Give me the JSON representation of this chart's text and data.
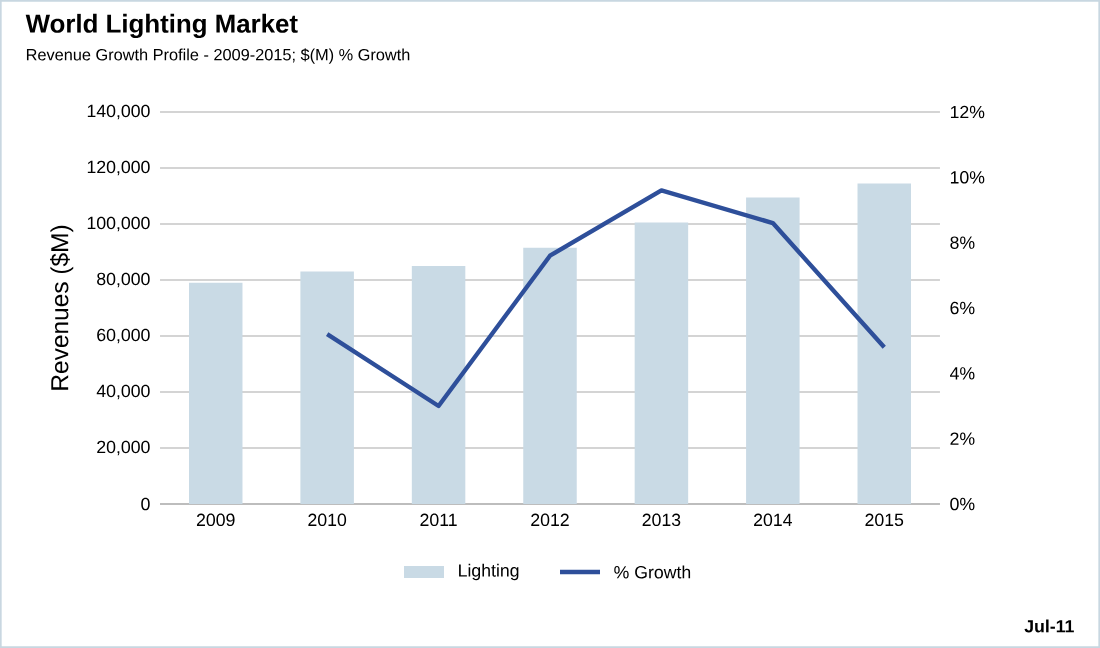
{
  "chart_data": {
    "type": "bar",
    "title": "World Lighting Market",
    "subtitle": "Revenue Growth Profile - 2009-2015;  $(M) % Growth",
    "ylabel": "Revenues ($M)",
    "categories": [
      "2009",
      "2010",
      "2011",
      "2012",
      "2013",
      "2014",
      "2015"
    ],
    "series": [
      {
        "name": "Lighting",
        "color": "#c9dae5",
        "values": [
          79000,
          83000,
          85000,
          91500,
          100500,
          109500,
          114500
        ]
      },
      {
        "name": "% Growth",
        "type": "line",
        "axis": "y2",
        "color": "#2e4f9a",
        "values": [
          null,
          5.2,
          3.0,
          7.6,
          9.6,
          8.6,
          4.8
        ]
      }
    ],
    "ylim": [
      0,
      140000
    ],
    "yticks": [
      {
        "value": 0,
        "label": "0"
      },
      {
        "value": 20000,
        "label": "20,000"
      },
      {
        "value": 40000,
        "label": "40,000"
      },
      {
        "value": 60000,
        "label": "60,000"
      },
      {
        "value": 80000,
        "label": "80,000"
      },
      {
        "value": 100000,
        "label": "100,000"
      },
      {
        "value": 120000,
        "label": "120,000"
      },
      {
        "value": 140000,
        "label": "140,000"
      }
    ],
    "y2lim": [
      0,
      12
    ],
    "y2ticks": [
      {
        "value": 0,
        "label": "0%"
      },
      {
        "value": 2,
        "label": "2%"
      },
      {
        "value": 4,
        "label": "4%"
      },
      {
        "value": 6,
        "label": "6%"
      },
      {
        "value": 8,
        "label": "8%"
      },
      {
        "value": 10,
        "label": "10%"
      },
      {
        "value": 12,
        "label": "12%"
      }
    ],
    "grid": "y",
    "legend": "bottom",
    "marker": "none",
    "line_style": "solid",
    "annotations": [
      "Jul-11"
    ]
  }
}
